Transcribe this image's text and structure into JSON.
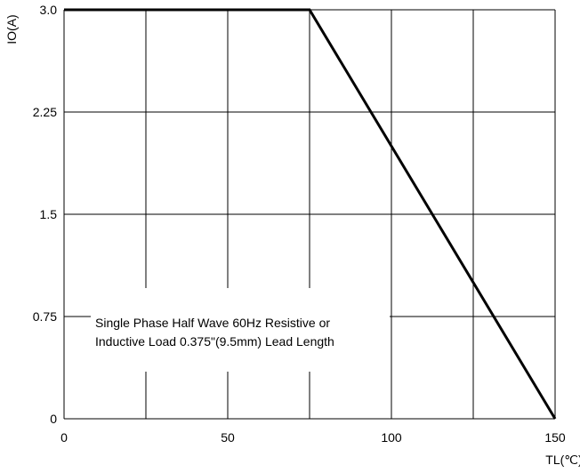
{
  "chart_data": {
    "type": "line",
    "title": "",
    "xlabel": "TL(℃)",
    "ylabel": "IO(A)",
    "xlim": [
      0,
      150
    ],
    "ylim": [
      0,
      3.0
    ],
    "x_ticks": [
      0,
      50,
      100,
      150
    ],
    "x_tick_labels": [
      "0",
      "50",
      "100",
      "150"
    ],
    "y_ticks": [
      0,
      0.75,
      1.5,
      2.25,
      3.0
    ],
    "y_tick_labels": [
      "0",
      "0.75",
      "1.5",
      "2.25",
      "3.0"
    ],
    "x_gridlines": [
      0,
      25,
      50,
      75,
      100,
      125,
      150
    ],
    "grid": true,
    "series": [
      {
        "x": [
          0,
          75,
          150
        ],
        "y": [
          3.0,
          3.0,
          0
        ]
      }
    ],
    "annotation": {
      "lines": [
        "Single Phase Half Wave 60Hz Resistive or",
        "Inductive Load 0.375\"(9.5mm) Lead Length"
      ]
    },
    "colors": {
      "line": "#000000",
      "grid": "#000000"
    }
  }
}
